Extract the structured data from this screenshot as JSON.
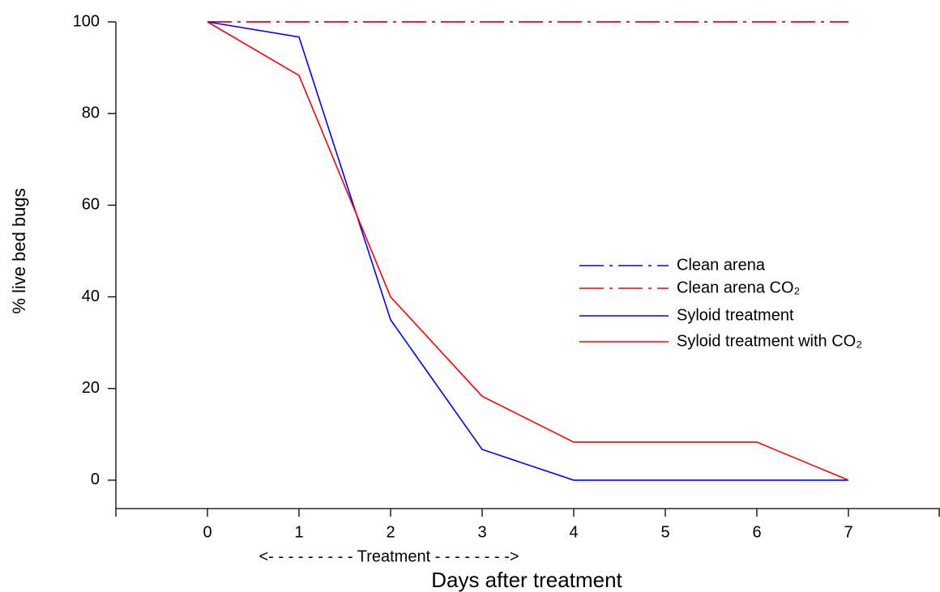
{
  "chart_data": {
    "type": "line",
    "x": [
      0,
      1,
      2,
      3,
      4,
      5,
      6,
      7
    ],
    "series": [
      {
        "name": "Clean arena",
        "color": "#0000ff",
        "linestyle": "dashed",
        "values": [
          100,
          100,
          100,
          100,
          100,
          100,
          100,
          100
        ]
      },
      {
        "name": "Clean arena CO₂",
        "color": "#ff0000",
        "linestyle": "dashed",
        "values": [
          100,
          100,
          100,
          100,
          100,
          100,
          100,
          100
        ]
      },
      {
        "name": "Syloid treatment",
        "color": "#0000ff",
        "linestyle": "solid",
        "values": [
          100,
          96.7,
          35,
          6.7,
          0,
          0,
          0,
          0
        ]
      },
      {
        "name": "Syloid treatment with CO₂",
        "color": "#ff0000",
        "linestyle": "solid",
        "values": [
          100,
          88.3,
          40,
          18.3,
          8.3,
          8.3,
          8.3,
          0
        ]
      }
    ],
    "xlim": [
      -1,
      8
    ],
    "ylim": [
      -6.2,
      100
    ],
    "xticks": [
      0,
      1,
      2,
      3,
      4,
      5,
      6,
      7
    ],
    "yticks": [
      0,
      20,
      40,
      60,
      80,
      100
    ],
    "xlabel": "Days after treatment",
    "ylabel": "% live bed bugs",
    "annotation": "<- - - - - - - - - Treatment - - - - - - - ->",
    "legend": "center right",
    "grid": false
  }
}
